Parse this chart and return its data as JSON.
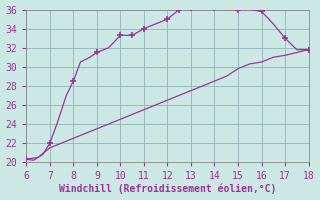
{
  "xlabel": "Windchill (Refroidissement éolien,°C)",
  "xlim": [
    6,
    18
  ],
  "ylim": [
    20,
    36
  ],
  "xticks": [
    6,
    7,
    8,
    9,
    10,
    11,
    12,
    13,
    14,
    15,
    16,
    17,
    18
  ],
  "yticks": [
    20,
    22,
    24,
    26,
    28,
    30,
    32,
    34,
    36
  ],
  "bg_color": "#cce8e4",
  "line_color": "#993399",
  "grid_color": "#99bbbb",
  "line1_x": [
    6,
    6.3,
    6.7,
    7.0,
    7.3,
    7.7,
    8.0,
    8.3,
    8.7,
    9.0,
    9.5,
    10.0,
    10.5,
    11.0,
    11.5,
    12.0,
    12.5,
    13.0,
    13.5,
    14.0,
    14.5,
    15.0,
    15.5,
    16.0,
    16.5,
    17.0,
    17.5,
    18.0
  ],
  "line1_y": [
    20.3,
    20.2,
    20.8,
    22.0,
    24.0,
    27.0,
    28.5,
    30.5,
    31.0,
    31.5,
    32.0,
    33.3,
    33.3,
    34.0,
    34.5,
    35.0,
    36.0,
    36.2,
    36.2,
    36.2,
    36.0,
    36.0,
    36.0,
    35.8,
    34.5,
    33.0,
    31.8,
    31.8
  ],
  "line2_x": [
    6,
    6.5,
    7.0,
    7.5,
    8.0,
    8.5,
    9.0,
    9.5,
    10.0,
    10.5,
    11.0,
    11.5,
    12.0,
    12.5,
    13.0,
    13.5,
    14.0,
    14.5,
    15.0,
    15.5,
    16.0,
    16.5,
    17.0,
    17.5,
    18.0
  ],
  "line2_y": [
    20.3,
    20.5,
    21.5,
    22.0,
    22.5,
    23.0,
    23.5,
    24.0,
    24.5,
    25.0,
    25.5,
    26.0,
    26.5,
    27.0,
    27.5,
    28.0,
    28.5,
    29.0,
    29.8,
    30.3,
    30.5,
    31.0,
    31.2,
    31.5,
    31.8
  ],
  "marker1_x": [
    6,
    7,
    8,
    9,
    10,
    10.5,
    11,
    12,
    12.5,
    13,
    14,
    15,
    16,
    17,
    18
  ],
  "marker1_y": [
    20.3,
    22.0,
    28.5,
    31.5,
    33.3,
    33.3,
    34.0,
    35.0,
    36.0,
    36.2,
    36.2,
    36.0,
    35.8,
    33.0,
    31.8
  ],
  "tick_color": "#993399",
  "tick_fontsize": 7,
  "xlabel_fontsize": 7
}
